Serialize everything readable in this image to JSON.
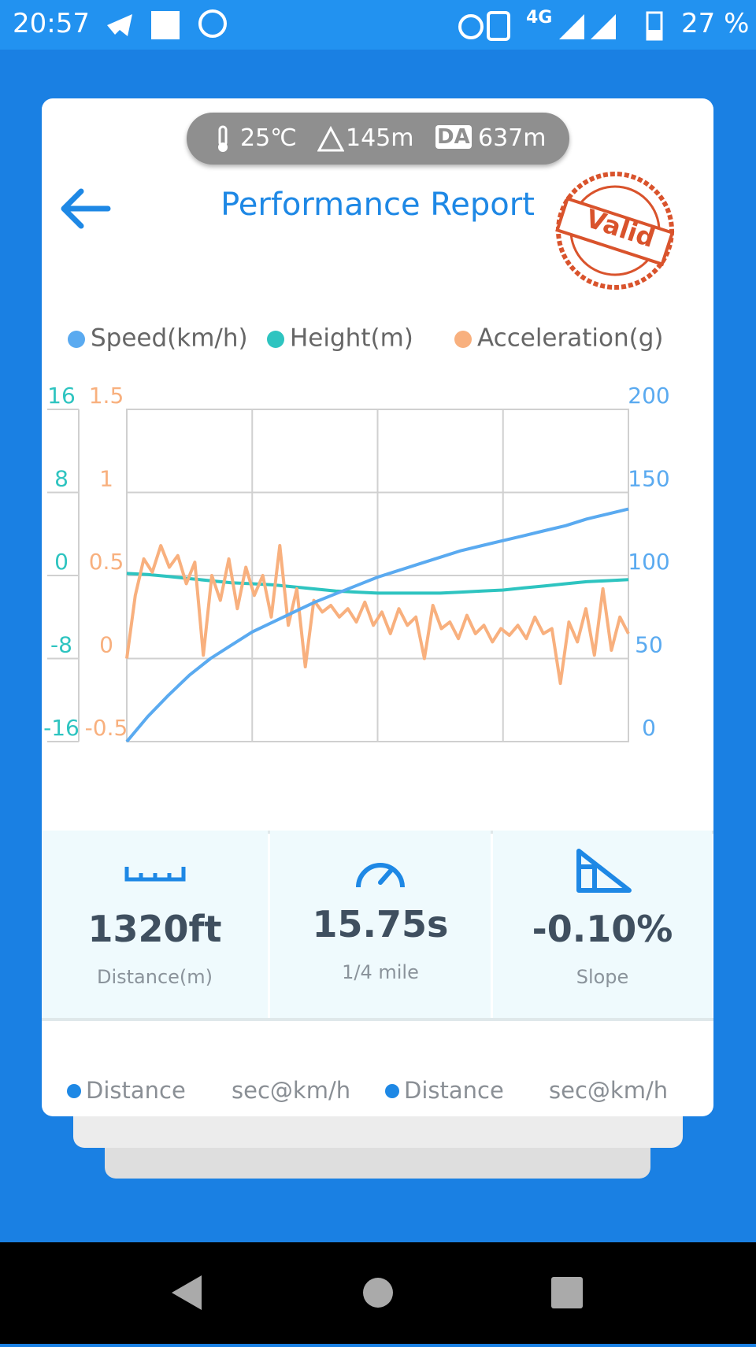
{
  "status_bar": {
    "time": "20:57",
    "network": "4G",
    "battery": "27 %"
  },
  "header": {
    "temperature": "25℃",
    "altitude": "145m",
    "density_altitude_badge": "DA",
    "density_altitude": "637m",
    "title": "Performance Report",
    "stamp": "Valid"
  },
  "chart_data": {
    "type": "line",
    "series": [
      {
        "name": "Speed(km/h)",
        "color": "#5aaaf0",
        "axis": "y2",
        "values": [
          0,
          15,
          28,
          40,
          50,
          58,
          66,
          72,
          78,
          84,
          89,
          94,
          99,
          103,
          107,
          111,
          115,
          118,
          121,
          124,
          127,
          130,
          134,
          137,
          140
        ]
      },
      {
        "name": "Height(m)",
        "color": "#2ec4c0",
        "axis": "y",
        "values": [
          0.2,
          0.1,
          -0.1,
          -0.3,
          -0.5,
          -0.7,
          -0.8,
          -0.9,
          -1.1,
          -1.3,
          -1.5,
          -1.6,
          -1.7,
          -1.7,
          -1.7,
          -1.7,
          -1.6,
          -1.5,
          -1.4,
          -1.2,
          -1,
          -0.8,
          -0.6,
          -0.5,
          -0.4
        ]
      },
      {
        "name": "Acceleration(g)",
        "color": "#f8b07e",
        "axis": "y3",
        "values": [
          0,
          0.38,
          0.6,
          0.52,
          0.68,
          0.55,
          0.62,
          0.45,
          0.58,
          0.02,
          0.5,
          0.35,
          0.6,
          0.3,
          0.55,
          0.38,
          0.5,
          0.25,
          0.68,
          0.2,
          0.42,
          -0.05,
          0.35,
          0.28,
          0.32,
          0.25,
          0.3,
          0.22,
          0.34,
          0.2,
          0.28,
          0.15,
          0.3,
          0.2,
          0.25,
          0.0,
          0.32,
          0.18,
          0.22,
          0.12,
          0.26,
          0.15,
          0.2,
          0.1,
          0.18,
          0.14,
          0.2,
          0.12,
          0.25,
          0.15,
          0.18,
          -0.15,
          0.22,
          0.1,
          0.3,
          0.02,
          0.42,
          0.05,
          0.25,
          0.15
        ]
      }
    ],
    "ylim": [
      -16,
      16
    ],
    "yticks": [
      -16,
      -8,
      0,
      8,
      16
    ],
    "y2lim": [
      0,
      200
    ],
    "y2ticks": [
      0,
      50,
      100,
      150,
      200
    ],
    "y3lim": [
      -0.5,
      1.5
    ],
    "y3ticks": [
      -0.5,
      0,
      0.5,
      1,
      1.5
    ],
    "grid": true
  },
  "stats": [
    {
      "value": "1320ft",
      "label": "Distance(m)"
    },
    {
      "value": "15.75s",
      "label": "1/4 mile"
    },
    {
      "value": "-0.10%",
      "label": "Slope"
    }
  ],
  "table_header": [
    "Distance",
    "sec@km/h",
    "Distance",
    "sec@km/h"
  ]
}
